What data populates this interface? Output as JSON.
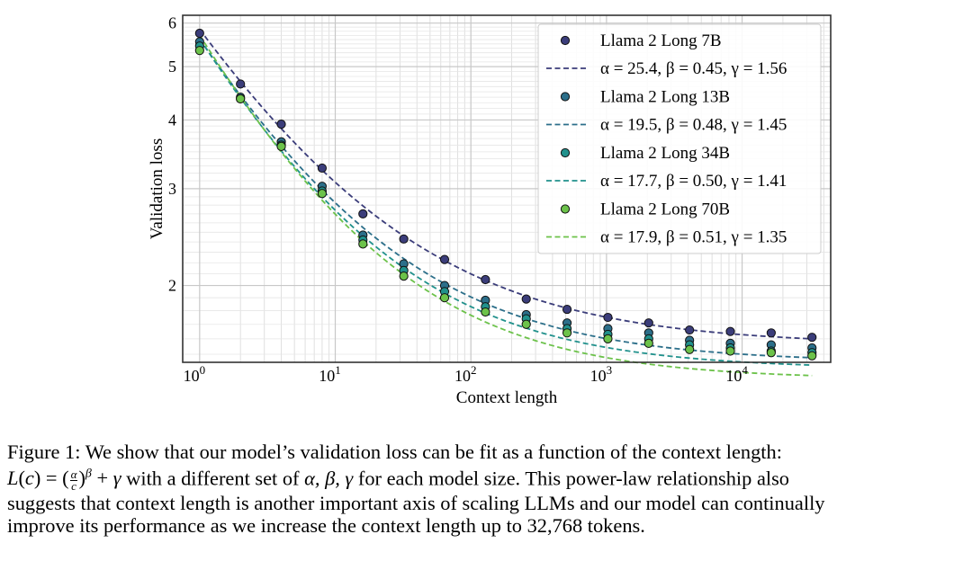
{
  "chart_data": {
    "type": "scatter",
    "xlabel": "Context length",
    "ylabel": "Validation loss",
    "xscale": "log",
    "yscale": "log",
    "xlim": [
      0.75,
      45000
    ],
    "ylim": [
      1.45,
      6.2
    ],
    "xticks": [
      1,
      10,
      100,
      1000,
      10000
    ],
    "xtick_labels": [
      {
        "base": "10",
        "exp": "0"
      },
      {
        "base": "10",
        "exp": "1"
      },
      {
        "base": "10",
        "exp": "2"
      },
      {
        "base": "10",
        "exp": "3"
      },
      {
        "base": "10",
        "exp": "4"
      }
    ],
    "yticks": [
      2,
      3,
      4,
      5,
      6
    ],
    "ytick_labels": [
      "2",
      "3",
      "4",
      "5",
      "6"
    ],
    "grid": true,
    "legend_position": "top-right",
    "x": [
      1,
      2,
      4,
      8,
      16,
      32,
      64,
      128,
      256,
      512,
      1024,
      2048,
      4096,
      8192,
      16384,
      32768
    ],
    "series": [
      {
        "name": "Llama 2 Long 7B",
        "fit_label": "α = 25.4, β = 0.45, γ = 1.56",
        "alpha": 25.4,
        "beta": 0.45,
        "gamma": 1.56,
        "color": "#3b3d7a",
        "values": [
          5.75,
          4.65,
          3.93,
          3.27,
          2.7,
          2.43,
          2.23,
          2.05,
          1.89,
          1.81,
          1.75,
          1.71,
          1.66,
          1.65,
          1.64,
          1.61
        ]
      },
      {
        "name": "Llama 2 Long  13B",
        "fit_label": "α = 19.5, β = 0.48, γ = 1.45",
        "alpha": 19.5,
        "beta": 0.48,
        "gamma": 1.45,
        "color": "#2c6f8a",
        "values": [
          5.55,
          4.4,
          3.65,
          3.03,
          2.47,
          2.19,
          2.0,
          1.88,
          1.77,
          1.71,
          1.67,
          1.64,
          1.59,
          1.57,
          1.56,
          1.54
        ]
      },
      {
        "name": "Llama 2 Long  34B",
        "fit_label": "α = 17.7, β = 0.50, γ = 1.41",
        "alpha": 17.7,
        "beta": 0.5,
        "gamma": 1.41,
        "color": "#21918c",
        "values": [
          5.45,
          4.37,
          3.6,
          2.97,
          2.42,
          2.13,
          1.95,
          1.83,
          1.74,
          1.67,
          1.63,
          1.6,
          1.56,
          1.54,
          1.52,
          1.51
        ]
      },
      {
        "name": "Llama 2 Long  70B",
        "fit_label": "α = 17.9, β = 0.51, γ = 1.35",
        "alpha": 17.9,
        "beta": 0.51,
        "gamma": 1.35,
        "color": "#6cc24a",
        "values": [
          5.35,
          4.37,
          3.58,
          2.94,
          2.38,
          2.08,
          1.9,
          1.79,
          1.7,
          1.64,
          1.6,
          1.57,
          1.53,
          1.52,
          1.51,
          1.49
        ]
      }
    ]
  },
  "caption": {
    "label": "Figure 1:",
    "line1": "We show that our model’s validation loss can be fit as a function of the context length:",
    "line2_pre": "with a different set of",
    "line2_greek": "α, β, γ",
    "line2_post": "for each model size. This power-law relationship also",
    "line3": "suggests that context length is another important axis of scaling LLMs and our model can continually",
    "line4": "improve its performance as we increase the context length up to 32,768 tokens."
  }
}
